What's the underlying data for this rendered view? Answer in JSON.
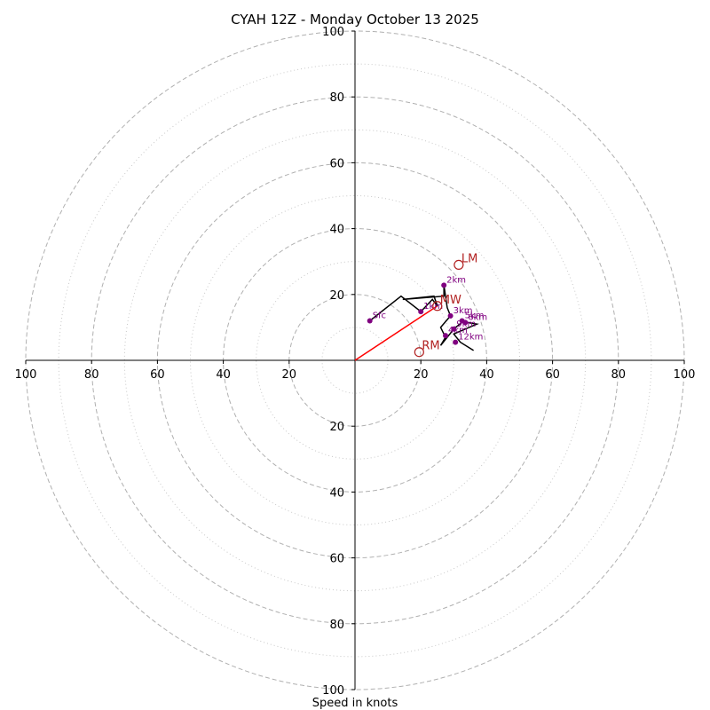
{
  "chart_data": {
    "type": "hodograph",
    "title": "CYAH 12Z - Monday October 13 2025",
    "xlabel": "Speed in knots",
    "units": "knots",
    "range": [
      -100,
      100
    ],
    "tick_values": [
      20,
      40,
      60,
      80,
      100
    ],
    "ring_values": {
      "major": [
        20,
        40,
        60,
        80,
        100
      ],
      "minor": [
        10,
        30,
        50,
        70,
        90
      ]
    },
    "hodograph_trace": [
      [
        4.5,
        12
      ],
      [
        14,
        19.5
      ],
      [
        20,
        14.8
      ],
      [
        23.5,
        18.5
      ],
      [
        25,
        16.5
      ],
      [
        24,
        19.5
      ],
      [
        14.5,
        18.5
      ],
      [
        27,
        19.5
      ],
      [
        27,
        22.8
      ],
      [
        28,
        16
      ],
      [
        29,
        13.5
      ],
      [
        26,
        10
      ],
      [
        27.5,
        7
      ],
      [
        26,
        4.5
      ],
      [
        30,
        9.5
      ],
      [
        33,
        12
      ],
      [
        34,
        11.5
      ],
      [
        37,
        11
      ],
      [
        30,
        8
      ],
      [
        32,
        5.5
      ],
      [
        36,
        3
      ]
    ],
    "height_labels": [
      {
        "label": "Sfc",
        "u": 4.5,
        "v": 12
      },
      {
        "label": "1km",
        "u": 20,
        "v": 14.8
      },
      {
        "label": "2km",
        "u": 27,
        "v": 22.8
      },
      {
        "label": "3km",
        "u": 29,
        "v": 13.5
      },
      {
        "label": "4km",
        "u": 27.5,
        "v": 7.5
      },
      {
        "label": "5km",
        "u": 32.5,
        "v": 12
      },
      {
        "label": "6km",
        "u": 33.5,
        "v": 11.5
      },
      {
        "label": "9km",
        "u": 30,
        "v": 9.5
      },
      {
        "label": "12km",
        "u": 30.5,
        "v": 5.5
      }
    ],
    "storm_motions": [
      {
        "label": "LM",
        "u": 31.5,
        "v": 29
      },
      {
        "label": "MW",
        "u": 25,
        "v": 16.5
      },
      {
        "label": "RM",
        "u": 19.5,
        "v": 2.5
      }
    ],
    "shear_vector": {
      "from": [
        0,
        0
      ],
      "to": [
        25,
        16.5
      ]
    },
    "colors": {
      "trace": "#000000",
      "heights": "#800080",
      "storm_motion": "#b22222",
      "shear": "#ff0000",
      "major_ring": "#b0b0b0",
      "minor_ring": "#c8c8c8"
    }
  }
}
